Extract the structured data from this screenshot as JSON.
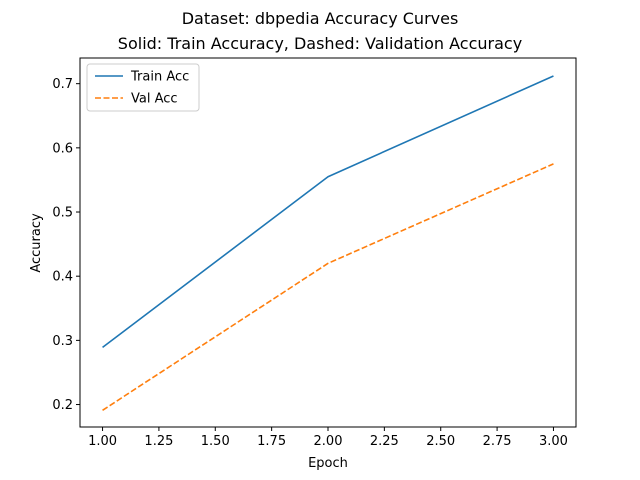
{
  "chart_data": {
    "type": "line",
    "title": "Dataset: dbpedia Accuracy Curves",
    "subtitle": "Solid: Train Accuracy, Dashed: Validation Accuracy",
    "xlabel": "Epoch",
    "ylabel": "Accuracy",
    "x": [
      1.0,
      2.0,
      3.0
    ],
    "xlim": [
      0.9,
      3.1
    ],
    "ylim": [
      0.165,
      0.74
    ],
    "xticks": [
      1.0,
      1.25,
      1.5,
      1.75,
      2.0,
      2.25,
      2.5,
      2.75,
      3.0
    ],
    "xtick_labels": [
      "1.00",
      "1.25",
      "1.50",
      "1.75",
      "2.00",
      "2.25",
      "2.50",
      "2.75",
      "3.00"
    ],
    "yticks": [
      0.2,
      0.3,
      0.4,
      0.5,
      0.6,
      0.7
    ],
    "ytick_labels": [
      "0.2",
      "0.3",
      "0.4",
      "0.5",
      "0.6",
      "0.7"
    ],
    "grid": false,
    "legend_position": "upper-left",
    "series": [
      {
        "name": "Train Acc",
        "values": [
          0.289,
          0.555,
          0.712
        ],
        "color": "#1f77b4",
        "style": "solid"
      },
      {
        "name": "Val Acc",
        "values": [
          0.191,
          0.42,
          0.575
        ],
        "color": "#ff7f0e",
        "style": "dashed"
      }
    ]
  }
}
